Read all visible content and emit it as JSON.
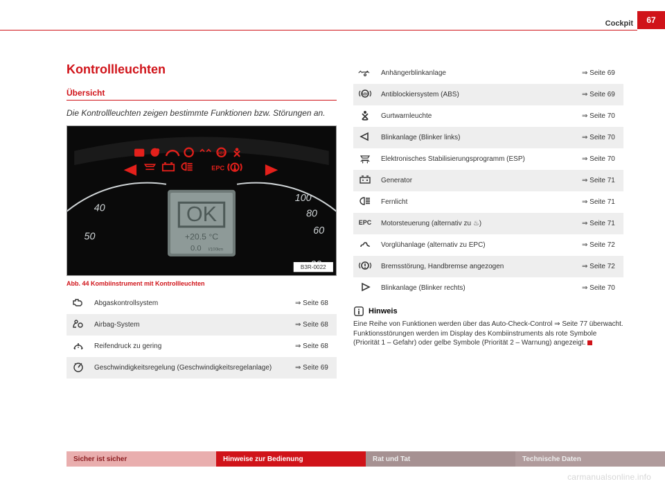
{
  "page": {
    "section": "Cockpit",
    "number": "67"
  },
  "left": {
    "title": "Kontrollleuchten",
    "subtitle": "Übersicht",
    "intro": "Die Kontrollleuchten zeigen bestimmte Funktionen bzw. Stö­rungen an.",
    "caption": "Abb. 44   Kombiinstrument mit Kontrollleuchten",
    "figure": {
      "ok_text": "OK",
      "temp_text": "+20.5 °C",
      "fuel_text": "0.0",
      "fuel_unit": "l/100km",
      "ticks_left": [
        "40",
        "50"
      ],
      "ticks_right": [
        "100",
        "80",
        "60",
        "20"
      ],
      "ref": "B3R-0022"
    },
    "rows": [
      {
        "icon": "engine",
        "label": "Abgaskontrollsystem",
        "page": "Seite 68",
        "alt": false
      },
      {
        "icon": "airbag",
        "label": "Airbag-System",
        "page": "Seite 68",
        "alt": true
      },
      {
        "icon": "tire",
        "label": "Reifendruck zu gering",
        "page": "Seite 68",
        "alt": false
      },
      {
        "icon": "cruise",
        "label": "Geschwindigkeitsregelung (Geschwindig­keitsregelanlage)",
        "page": "Seite 69",
        "alt": true
      }
    ]
  },
  "right": {
    "rows": [
      {
        "icon": "trailer",
        "label": "Anhängerblinkanlage",
        "page": "Seite 69",
        "alt": false
      },
      {
        "icon": "abs",
        "label": "Antiblockiersystem (ABS)",
        "page": "Seite 69",
        "alt": true
      },
      {
        "icon": "belt",
        "label": "Gurtwarnleuchte",
        "page": "Seite 70",
        "alt": false
      },
      {
        "icon": "blink-left",
        "label": "Blinkanlage (Blinker links)",
        "page": "Seite 70",
        "alt": true
      },
      {
        "icon": "esp",
        "label": "Elektronisches Stabilisierungsprogramm (ESP)",
        "page": "Seite 70",
        "alt": false
      },
      {
        "icon": "battery",
        "label": "Generator",
        "page": "Seite 71",
        "alt": true
      },
      {
        "icon": "highbeam",
        "label": "Fernlicht",
        "page": "Seite 71",
        "alt": false
      },
      {
        "icon": "epc",
        "label": "Motorsteuerung (alternativ zu ♨)",
        "page": "Seite 71",
        "alt": true
      },
      {
        "icon": "glow",
        "label": "Vorglühanlage (alternativ zu EPC)",
        "page": "Seite 72",
        "alt": false
      },
      {
        "icon": "brake",
        "label": "Bremsstörung, Handbremse angezogen",
        "page": "Seite 72",
        "alt": true
      },
      {
        "icon": "blink-right",
        "label": "Blinkanlage (Blinker rechts)",
        "page": "Seite 70",
        "alt": false
      }
    ],
    "note_title": "Hinweis",
    "note_body": "Eine Reihe von Funktionen werden über das Auto-Check-Control ⇒ Seite 77 überwacht. Funktionsstörungen werden im Display des Kombi­instruments als rote Symbole (Priorität 1 – Gefahr) oder gelbe Symbole (Pri­orität 2 – Warnung) angezeigt."
  },
  "footer": {
    "c1": "Sicher ist sicher",
    "c2": "Hinweise zur Bedienung",
    "c3": "Rat und Tat",
    "c4": "Technische Daten"
  },
  "watermark": "carmanualsonline.info",
  "icons": {
    "stroke": "#333333"
  }
}
